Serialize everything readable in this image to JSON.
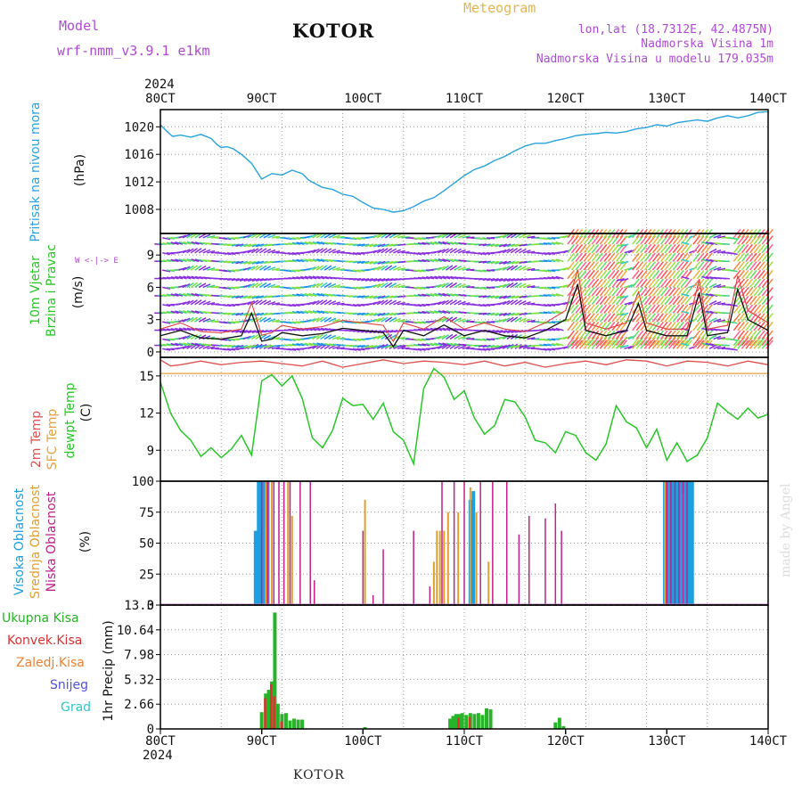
{
  "header": {
    "model_label": "Model",
    "model_name": "wrf-nmm_v3.9.1 e1km",
    "station": "KOTOR",
    "meteogram": "Meteogram",
    "lonlat": "lon,lat (18.7312E, 42.4875N)",
    "altitude": "Nadmorska Visina 1m",
    "model_altitude": "Nadmorska Visina u modelu 179.035m"
  },
  "footer": {
    "station": "KOTOR",
    "credit": "made by Angel"
  },
  "time_axis": {
    "year": "2024",
    "labels": [
      "80CT",
      "90CT",
      "100CT",
      "110CT",
      "120CT",
      "130CT",
      "140CT"
    ]
  },
  "panels": {
    "pressure": {
      "label": "Pritisak na nivou mora",
      "unit": "(hPa)"
    },
    "wind": {
      "label1": "10m Vjetar",
      "label2": "Brzina i Pravac",
      "unit": "(m/s)",
      "compass": "W <-|-> E"
    },
    "temp": {
      "label1": "2m Temp",
      "label2": "SFC Temp",
      "label3": "dewpt Temp",
      "unit": "(C)"
    },
    "cloud": {
      "label1": "Visoka Oblacnost",
      "label2": "Srednja Oblacnost",
      "label3": "Niska Oblacnost",
      "unit": "(%)"
    },
    "precip": {
      "unit": "1hr Precip (mm)",
      "legend": [
        "Ukupna Kisa",
        "Konvek.Kisa",
        "Zaledj.Kisa",
        "Snijeg",
        "Grad"
      ]
    }
  },
  "colors": {
    "pressure": "#29a3e0",
    "temp2m": "#e05050",
    "sfc": "#e8a040",
    "dew": "#28c828",
    "high_cloud": "#1ea0e0",
    "mid_cloud": "#e0a030",
    "low_cloud": "#c0208c",
    "rain_total": "#28b428",
    "rain_conv": "#e03030",
    "freezing": "#f08030",
    "snow": "#5050d8",
    "hail": "#30c8c8"
  },
  "chart_data": [
    {
      "type": "line",
      "title": "Pritisak na nivou mora",
      "ylabel": "(hPa)",
      "yticks": [
        1008,
        1012,
        1016,
        1020
      ],
      "ylim": [
        1004.5,
        1022.5
      ],
      "x": [
        0,
        0.3,
        0.6,
        1.0,
        1.5,
        2.0,
        2.5,
        2.8,
        3.0,
        3.3,
        3.6,
        4.0,
        4.5,
        5.0,
        5.5,
        6.0,
        6.5,
        7.0,
        7.3,
        7.6,
        8.0,
        8.5,
        9.0,
        9.5,
        10.0,
        10.5,
        11.0,
        11.5,
        12.0,
        12.5,
        13.0,
        13.5,
        14.0,
        14.5,
        15.0,
        15.5,
        16.0,
        16.5,
        17.0,
        17.5,
        18.0,
        18.5,
        19.0,
        19.5,
        20.0,
        20.5,
        21.0,
        21.5,
        22.0,
        22.5,
        23.0,
        23.5,
        24.0,
        24.5,
        25.0,
        25.5,
        26.0,
        26.5,
        27.0,
        27.5,
        28.0,
        28.5,
        29.0,
        29.5,
        30.0
      ],
      "values": [
        1020.3,
        1019.4,
        1018.6,
        1018.8,
        1018.5,
        1018.9,
        1018.3,
        1017.4,
        1017.0,
        1017.1,
        1016.8,
        1016.0,
        1014.7,
        1012.4,
        1013.2,
        1013.0,
        1013.7,
        1013.2,
        1012.3,
        1011.8,
        1011.2,
        1010.9,
        1010.2,
        1009.9,
        1009.0,
        1008.2,
        1008.0,
        1007.6,
        1007.8,
        1008.4,
        1009.2,
        1009.7,
        1010.7,
        1011.8,
        1012.9,
        1013.8,
        1014.3,
        1015.1,
        1015.7,
        1016.5,
        1017.2,
        1017.6,
        1017.6,
        1018.0,
        1018.3,
        1018.7,
        1018.9,
        1019.0,
        1019.2,
        1019.1,
        1019.3,
        1019.7,
        1019.9,
        1020.3,
        1020.1,
        1020.6,
        1020.8,
        1021.0,
        1020.8,
        1021.3,
        1021.6,
        1021.3,
        1021.6,
        1022.1,
        1022.2
      ],
      "xlim": [
        0,
        30
      ]
    },
    {
      "type": "line",
      "title": "10m Vjetar Brzina i Pravac",
      "ylabel": "(m/s)",
      "yticks": [
        0,
        3,
        6,
        9
      ],
      "ylim": [
        -0.5,
        11
      ],
      "xlim": [
        0,
        30
      ],
      "x": [
        0,
        1,
        2,
        3,
        4,
        4.5,
        5.0,
        5.5,
        6,
        7,
        8,
        9,
        10,
        11,
        11.5,
        12,
        13,
        14,
        15,
        16,
        17,
        18,
        19,
        20,
        20.6,
        21,
        22,
        23,
        23.6,
        24,
        25,
        26,
        26.6,
        27,
        28,
        28.5,
        29,
        30
      ],
      "values": [
        1.5,
        2.0,
        1.3,
        1.2,
        1.5,
        3.6,
        1.0,
        1.2,
        1.8,
        1.5,
        1.7,
        2.2,
        2.0,
        1.8,
        0.5,
        2.0,
        1.5,
        2.5,
        1.5,
        2.0,
        1.5,
        1.3,
        2.0,
        3.0,
        6.3,
        2.0,
        1.5,
        2.0,
        4.5,
        2.0,
        1.5,
        1.5,
        5.5,
        1.5,
        1.8,
        5.8,
        3.0,
        2.0
      ]
    },
    {
      "type": "line",
      "title": "2m Temp / SFC Temp / dewpt Temp",
      "ylabel": "(C)",
      "yticks": [
        9,
        12,
        15
      ],
      "ylim": [
        6.5,
        16.5
      ],
      "xlim": [
        0,
        30
      ],
      "series": [
        {
          "name": "2m Temp",
          "x": [
            0,
            0.5,
            1,
            2,
            3,
            4,
            5,
            6,
            7,
            8,
            9,
            10,
            11,
            12,
            13,
            14,
            15,
            16,
            17,
            18,
            19,
            20,
            21,
            22,
            23,
            24,
            25,
            26,
            27,
            28,
            29,
            30
          ],
          "values": [
            16.3,
            15.8,
            15.9,
            16.2,
            15.9,
            16.1,
            16.2,
            16.0,
            15.8,
            16.2,
            15.7,
            16.0,
            16.3,
            16.0,
            16.2,
            16.1,
            15.9,
            16.2,
            15.8,
            16.1,
            15.7,
            16.0,
            16.2,
            15.9,
            16.3,
            16.2,
            15.8,
            16.2,
            16.1,
            15.8,
            16.2,
            15.9
          ]
        },
        {
          "name": "SFC Temp",
          "x": [
            0,
            30
          ],
          "values": [
            15.2,
            15.2
          ]
        },
        {
          "name": "dewpt Temp",
          "x": [
            0,
            0.5,
            1,
            1.5,
            2,
            2.5,
            3,
            3.5,
            4,
            4.5,
            5,
            5.5,
            6,
            6.5,
            7,
            7.5,
            8,
            8.5,
            9,
            9.5,
            10,
            10.5,
            11,
            11.5,
            12,
            12.5,
            13,
            13.5,
            14,
            14.5,
            15,
            15.5,
            16,
            16.5,
            17,
            17.5,
            18,
            18.5,
            19,
            19.5,
            20,
            20.5,
            21,
            21.5,
            22,
            22.5,
            23,
            23.5,
            24,
            24.5,
            25,
            25.5,
            26,
            26.5,
            27,
            27.5,
            28,
            28.5,
            29,
            29.5,
            30
          ],
          "values": [
            14.5,
            12.0,
            10.6,
            9.8,
            8.5,
            9.2,
            8.4,
            9.1,
            10.2,
            8.6,
            14.6,
            15.1,
            14.2,
            15.0,
            13.2,
            10.0,
            9.2,
            10.6,
            13.2,
            12.6,
            12.7,
            11.5,
            12.8,
            10.5,
            9.8,
            7.9,
            14.0,
            15.6,
            14.9,
            13.1,
            13.8,
            11.6,
            10.3,
            11.0,
            13.1,
            12.9,
            11.7,
            9.8,
            9.6,
            8.8,
            10.5,
            10.2,
            8.8,
            8.2,
            9.5,
            12.6,
            11.3,
            10.8,
            9.2,
            10.7,
            8.2,
            9.6,
            8.1,
            8.6,
            10.0,
            12.8,
            12.1,
            11.5,
            12.4,
            11.6,
            11.9
          ]
        }
      ]
    },
    {
      "type": "bar",
      "title": "Oblacnost",
      "ylabel": "(%)",
      "yticks": [
        0,
        25,
        50,
        75,
        100
      ],
      "ylim": [
        0,
        100
      ],
      "xlim": [
        0,
        30
      ],
      "series": [
        {
          "name": "Visoka Oblacnost",
          "x": [
            4.7,
            4.85,
            5.0,
            5.15,
            5.3,
            15.3,
            15.45,
            24.9,
            25.05,
            25.2,
            25.35,
            25.5,
            25.65,
            25.8,
            25.95,
            26.1,
            26.25
          ],
          "values": [
            60,
            100,
            100,
            100,
            100,
            85,
            92,
            100,
            100,
            100,
            100,
            100,
            100,
            100,
            100,
            100,
            100
          ]
        },
        {
          "name": "Srednja Oblacnost",
          "x": [
            5.2,
            5.5,
            6.3,
            6.5,
            10.1,
            13.5,
            13.65,
            13.8,
            14.0,
            14.2,
            14.7,
            15.3,
            15.6,
            16.2,
            24.9,
            25.8
          ],
          "values": [
            100,
            100,
            100,
            72,
            85,
            35,
            60,
            60,
            60,
            75,
            75,
            95,
            75,
            35,
            100,
            90
          ]
        },
        {
          "name": "Niska Oblacnost",
          "x": [
            5.0,
            5.3,
            5.6,
            5.85,
            6.1,
            6.4,
            6.9,
            7.4,
            7.6,
            10.0,
            10.5,
            11.0,
            12.5,
            13.3,
            13.9,
            14.5,
            15.0,
            15.8,
            16.4,
            17.1,
            17.7,
            18.2,
            19.0,
            19.5,
            19.8,
            25.0,
            25.2,
            25.4,
            25.6,
            25.8,
            26.0
          ],
          "values": [
            100,
            100,
            100,
            100,
            100,
            100,
            100,
            100,
            20,
            60,
            8,
            45,
            60,
            15,
            100,
            100,
            100,
            100,
            100,
            100,
            57,
            72,
            70,
            82,
            60,
            100,
            100,
            100,
            100,
            100,
            100
          ]
        }
      ]
    },
    {
      "type": "bar",
      "title": "1hr Precip",
      "ylabel": "1hr Precip (mm)",
      "yticks": [
        0,
        2.66,
        5.32,
        7.98,
        10.64,
        13.3
      ],
      "ylim": [
        0,
        13.3
      ],
      "xlim": [
        0,
        30
      ],
      "series": [
        {
          "name": "Ukupna Kisa",
          "x": [
            5.0,
            5.2,
            5.35,
            5.5,
            5.65,
            5.8,
            6.0,
            6.2,
            6.4,
            6.6,
            6.8,
            7.0,
            10.1,
            14.3,
            14.45,
            14.6,
            14.75,
            14.9,
            15.1,
            15.3,
            15.5,
            15.7,
            15.9,
            16.1,
            16.3,
            19.5,
            19.7,
            19.9
          ],
          "values": [
            1.8,
            3.8,
            4.2,
            5.1,
            12.5,
            2.7,
            1.6,
            1.7,
            0.9,
            1.1,
            1.0,
            1.0,
            0.2,
            1.1,
            1.4,
            1.6,
            1.6,
            1.7,
            1.5,
            1.7,
            1.6,
            1.7,
            1.5,
            2.2,
            2.1,
            0.7,
            1.2,
            0.3
          ]
        },
        {
          "name": "Konvek.Kisa",
          "x": [
            5.2,
            5.5,
            5.65,
            6.0,
            14.75,
            15.3
          ],
          "values": [
            3.3,
            4.8,
            3.5,
            0.8,
            1.2,
            1.3
          ]
        }
      ]
    }
  ]
}
